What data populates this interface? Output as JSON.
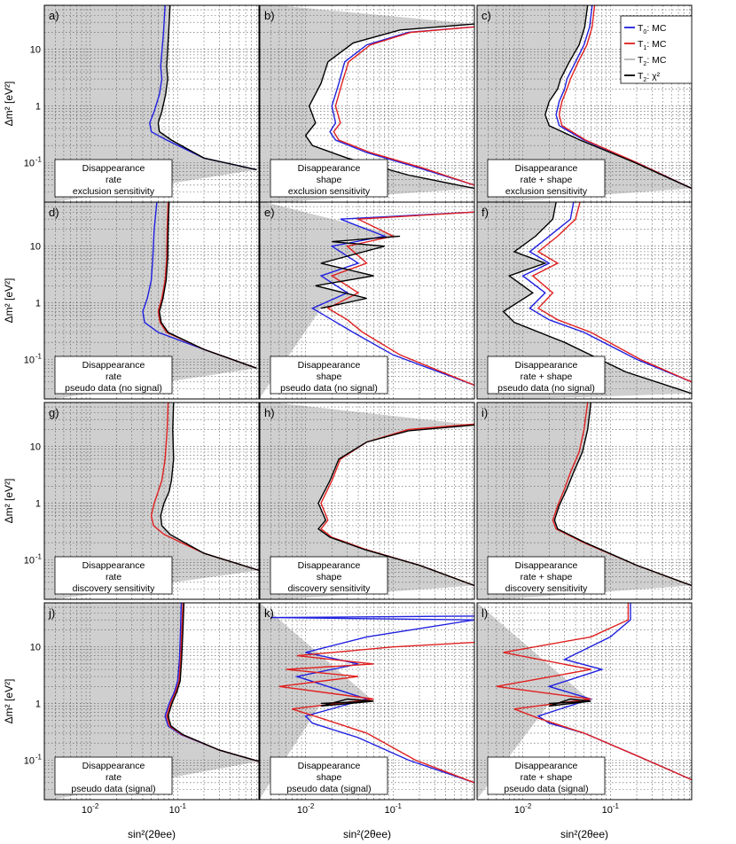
{
  "figure": {
    "y_axis_label": "Δm² [eV²]",
    "x_axis_label": "sin²(2θee)",
    "legend": [
      {
        "label": "T0: MC",
        "sub": "0",
        "text": "T",
        "rest": ": MC",
        "color": "#2020e0"
      },
      {
        "label": "T1: MC",
        "sub": "1",
        "text": "T",
        "rest": ": MC",
        "color": "#e02020"
      },
      {
        "label": "T2: MC",
        "sub": "2",
        "text": "T",
        "rest": ": MC",
        "color": "#b4b4b4"
      },
      {
        "label": "T2: χ²",
        "sub": "2",
        "text": "T",
        "rest": ": χ²",
        "color": "#000000"
      }
    ],
    "x_ticks": [
      {
        "label": "10",
        "exp": "-2",
        "value": 0.01
      },
      {
        "label": "10",
        "exp": "-1",
        "value": 0.1
      }
    ],
    "y_ticks": [
      {
        "label": "10",
        "exp": "-1",
        "value": 0.1
      },
      {
        "label": "1",
        "exp": "",
        "value": 1
      },
      {
        "label": "10",
        "exp": "",
        "value": 10
      }
    ]
  },
  "chart_data": [
    {
      "type": "line",
      "panel": "a)",
      "box": [
        "Disappearance",
        "rate",
        "exclusion sensitivity"
      ],
      "xscale": "log",
      "yscale": "log",
      "series": [
        {
          "name": "T0: MC",
          "x": [
            0.072,
            0.069,
            0.064,
            0.066,
            0.062,
            0.054,
            0.048,
            0.05,
            0.075,
            0.2,
            0.8
          ],
          "y": [
            60,
            20,
            5,
            3,
            1.6,
            0.8,
            0.5,
            0.35,
            0.25,
            0.12,
            0.075
          ]
        },
        {
          "name": "T2: χ²",
          "x": [
            0.082,
            0.079,
            0.075,
            0.077,
            0.073,
            0.066,
            0.06,
            0.062,
            0.085,
            0.2,
            0.8
          ],
          "y": [
            60,
            20,
            5,
            3,
            1.6,
            0.8,
            0.5,
            0.35,
            0.25,
            0.12,
            0.075
          ]
        }
      ]
    },
    {
      "type": "line",
      "panel": "b)",
      "box": [
        "Disappearance",
        "shape",
        "exclusion sensitivity"
      ],
      "xscale": "log",
      "yscale": "log",
      "series": [
        {
          "name": "T0: MC",
          "x": [
            0.85,
            0.15,
            0.05,
            0.028,
            0.024,
            0.02,
            0.022,
            0.019,
            0.022,
            0.05,
            0.2,
            0.85
          ],
          "y": [
            25,
            20,
            12,
            6,
            2.5,
            1,
            0.5,
            0.35,
            0.25,
            0.15,
            0.08,
            0.04
          ]
        },
        {
          "name": "T1: MC",
          "x": [
            0.85,
            0.16,
            0.055,
            0.031,
            0.026,
            0.022,
            0.025,
            0.021,
            0.024,
            0.055,
            0.22,
            0.85
          ],
          "y": [
            25,
            20,
            12,
            6,
            2.5,
            1,
            0.5,
            0.35,
            0.25,
            0.15,
            0.08,
            0.04
          ]
        },
        {
          "name": "T2: χ²",
          "x": [
            0.85,
            0.12,
            0.035,
            0.018,
            0.015,
            0.011,
            0.013,
            0.01,
            0.012,
            0.03,
            0.15,
            0.85
          ],
          "y": [
            28,
            22,
            13,
            6,
            2.5,
            1,
            0.5,
            0.3,
            0.2,
            0.12,
            0.06,
            0.035
          ]
        }
      ]
    },
    {
      "type": "line",
      "panel": "c)",
      "box": [
        "Disappearance",
        "rate + shape",
        "exclusion sensitivity"
      ],
      "xscale": "log",
      "yscale": "log",
      "series": [
        {
          "name": "T0: MC",
          "x": [
            0.062,
            0.058,
            0.05,
            0.04,
            0.032,
            0.03,
            0.026,
            0.024,
            0.026,
            0.05,
            0.2,
            0.85
          ],
          "y": [
            60,
            25,
            12,
            6,
            3,
            2,
            1.2,
            0.7,
            0.45,
            0.25,
            0.1,
            0.035
          ]
        },
        {
          "name": "T1: MC",
          "x": [
            0.066,
            0.062,
            0.054,
            0.043,
            0.035,
            0.032,
            0.028,
            0.026,
            0.028,
            0.052,
            0.2,
            0.85
          ],
          "y": [
            60,
            25,
            12,
            6,
            3,
            2,
            1.2,
            0.7,
            0.45,
            0.25,
            0.1,
            0.035
          ]
        },
        {
          "name": "T2: χ²",
          "x": [
            0.055,
            0.051,
            0.044,
            0.034,
            0.027,
            0.025,
            0.02,
            0.018,
            0.02,
            0.045,
            0.19,
            0.85
          ],
          "y": [
            60,
            25,
            12,
            6,
            3,
            2,
            1.2,
            0.7,
            0.45,
            0.25,
            0.1,
            0.035
          ]
        }
      ]
    },
    {
      "type": "line",
      "panel": "d)",
      "box": [
        "Disappearance",
        "rate",
        "pseudo data (no signal)"
      ],
      "xscale": "log",
      "yscale": "log",
      "series": [
        {
          "name": "T0: MC",
          "x": [
            0.058,
            0.054,
            0.052,
            0.05,
            0.045,
            0.04,
            0.042,
            0.06,
            0.2,
            0.8
          ],
          "y": [
            60,
            20,
            6,
            2.5,
            1.2,
            0.7,
            0.45,
            0.3,
            0.15,
            0.07
          ]
        },
        {
          "name": "T1: MC",
          "x": [
            0.078,
            0.076,
            0.075,
            0.072,
            0.066,
            0.06,
            0.063,
            0.075,
            0.2,
            0.8
          ],
          "y": [
            60,
            20,
            6,
            2.5,
            1.2,
            0.7,
            0.45,
            0.3,
            0.15,
            0.07
          ]
        },
        {
          "name": "T2: χ²",
          "x": [
            0.08,
            0.078,
            0.077,
            0.074,
            0.068,
            0.062,
            0.065,
            0.078,
            0.2,
            0.8
          ],
          "y": [
            60,
            20,
            6,
            2.5,
            1.2,
            0.7,
            0.45,
            0.3,
            0.15,
            0.07
          ]
        }
      ]
    },
    {
      "type": "line",
      "panel": "e)",
      "box": [
        "Disappearance",
        "shape",
        "pseudo data (no signal)"
      ],
      "xscale": "log",
      "yscale": "log",
      "series": [
        {
          "name": "T0: MC",
          "x": [
            0.85,
            0.025,
            0.08,
            0.02,
            0.04,
            0.015,
            0.03,
            0.012,
            0.02,
            0.035,
            0.1,
            0.85
          ],
          "y": [
            40,
            30,
            15,
            10,
            5,
            3,
            1.5,
            0.8,
            0.5,
            0.3,
            0.12,
            0.035
          ]
        },
        {
          "name": "T1: MC",
          "x": [
            0.85,
            0.04,
            0.1,
            0.03,
            0.05,
            0.02,
            0.04,
            0.018,
            0.03,
            0.045,
            0.12,
            0.85
          ],
          "y": [
            40,
            30,
            15,
            10,
            5,
            3,
            1.5,
            0.8,
            0.5,
            0.3,
            0.12,
            0.035
          ]
        },
        {
          "name": "T2: χ²",
          "x": [
            0.12,
            0.02,
            0.08,
            0.015,
            0.06,
            0.013,
            0.05,
            0.015
          ],
          "y": [
            15,
            12,
            10,
            5,
            3,
            2,
            1.2,
            0.8
          ]
        }
      ]
    },
    {
      "type": "line",
      "panel": "f)",
      "box": [
        "Disappearance",
        "rate + shape",
        "pseudo data (no signal)"
      ],
      "xscale": "log",
      "yscale": "log",
      "series": [
        {
          "name": "T0: MC",
          "x": [
            0.038,
            0.035,
            0.02,
            0.012,
            0.02,
            0.01,
            0.018,
            0.012,
            0.02,
            0.05,
            0.2,
            0.85
          ],
          "y": [
            60,
            30,
            15,
            8,
            5,
            3,
            1.5,
            0.8,
            0.5,
            0.3,
            0.1,
            0.04
          ]
        },
        {
          "name": "T1: MC",
          "x": [
            0.045,
            0.04,
            0.025,
            0.015,
            0.025,
            0.013,
            0.022,
            0.015,
            0.025,
            0.06,
            0.22,
            0.85
          ],
          "y": [
            60,
            30,
            15,
            8,
            5,
            3,
            1.5,
            0.8,
            0.5,
            0.3,
            0.1,
            0.04
          ]
        },
        {
          "name": "T2: χ²",
          "x": [
            0.024,
            0.022,
            0.014,
            0.008,
            0.018,
            0.007,
            0.013,
            0.006,
            0.008,
            0.03,
            0.15,
            0.85
          ],
          "y": [
            60,
            30,
            15,
            8,
            5,
            3,
            1.5,
            0.7,
            0.45,
            0.2,
            0.06,
            0.025
          ]
        }
      ]
    },
    {
      "type": "line",
      "panel": "g)",
      "box": [
        "Disappearance",
        "rate",
        "discovery sensitivity"
      ],
      "xscale": "log",
      "yscale": "log",
      "series": [
        {
          "name": "T1: MC",
          "x": [
            0.078,
            0.076,
            0.072,
            0.066,
            0.06,
            0.054,
            0.05,
            0.053,
            0.07,
            0.2,
            0.85
          ],
          "y": [
            60,
            20,
            6,
            2.5,
            1.6,
            1,
            0.6,
            0.4,
            0.28,
            0.13,
            0.065
          ]
        },
        {
          "name": "T2: χ²",
          "x": [
            0.09,
            0.088,
            0.09,
            0.085,
            0.08,
            0.07,
            0.064,
            0.066,
            0.082,
            0.2,
            0.85
          ],
          "y": [
            60,
            20,
            6,
            2.5,
            1.6,
            1,
            0.6,
            0.4,
            0.28,
            0.13,
            0.065
          ]
        }
      ]
    },
    {
      "type": "line",
      "panel": "h)",
      "box": [
        "Disappearance",
        "shape",
        "discovery sensitivity"
      ],
      "xscale": "log",
      "yscale": "log",
      "series": [
        {
          "name": "T1: MC",
          "x": [
            0.85,
            0.15,
            0.05,
            0.025,
            0.02,
            0.015,
            0.018,
            0.015,
            0.02,
            0.05,
            0.2,
            0.85
          ],
          "y": [
            25,
            20,
            12,
            6,
            2.5,
            1,
            0.5,
            0.35,
            0.25,
            0.15,
            0.08,
            0.035
          ]
        },
        {
          "name": "T2: χ²",
          "x": [
            0.85,
            0.15,
            0.05,
            0.024,
            0.019,
            0.014,
            0.017,
            0.014,
            0.019,
            0.048,
            0.2,
            0.85
          ],
          "y": [
            24,
            19,
            12,
            6,
            2.5,
            1,
            0.5,
            0.35,
            0.25,
            0.15,
            0.08,
            0.035
          ]
        }
      ]
    },
    {
      "type": "line",
      "panel": "i)",
      "box": [
        "Disappearance",
        "rate + shape",
        "discovery sensitivity"
      ],
      "xscale": "log",
      "yscale": "log",
      "series": [
        {
          "name": "T1: MC",
          "x": [
            0.055,
            0.05,
            0.044,
            0.035,
            0.03,
            0.025,
            0.022,
            0.024,
            0.05,
            0.2,
            0.85
          ],
          "y": [
            60,
            20,
            8,
            3.5,
            1.8,
            0.9,
            0.5,
            0.35,
            0.2,
            0.08,
            0.035
          ]
        },
        {
          "name": "T2: χ²",
          "x": [
            0.06,
            0.055,
            0.048,
            0.038,
            0.032,
            0.026,
            0.023,
            0.025,
            0.052,
            0.2,
            0.85
          ],
          "y": [
            60,
            20,
            8,
            3.5,
            1.8,
            0.9,
            0.5,
            0.35,
            0.2,
            0.08,
            0.035
          ]
        }
      ]
    },
    {
      "type": "line",
      "panel": "j)",
      "box": [
        "Disappearance",
        "rate",
        "pseudo data (signal)"
      ],
      "xscale": "log",
      "yscale": "log",
      "series": [
        {
          "name": "T0: MC",
          "x": [
            0.11,
            0.108,
            0.105,
            0.1,
            0.092,
            0.08,
            0.072,
            0.078,
            0.11,
            0.3,
            0.85
          ],
          "y": [
            60,
            20,
            6,
            2.5,
            1.6,
            1,
            0.6,
            0.4,
            0.28,
            0.15,
            0.095
          ]
        },
        {
          "name": "T1: MC",
          "x": [
            0.115,
            0.112,
            0.108,
            0.104,
            0.095,
            0.083,
            0.075,
            0.081,
            0.113,
            0.3,
            0.85
          ],
          "y": [
            60,
            20,
            6,
            2.5,
            1.6,
            1,
            0.6,
            0.4,
            0.28,
            0.15,
            0.095
          ]
        },
        {
          "name": "T2: χ²",
          "x": [
            0.118,
            0.115,
            0.111,
            0.107,
            0.098,
            0.086,
            0.078,
            0.084,
            0.116,
            0.3,
            0.85
          ],
          "y": [
            60,
            20,
            6,
            2.5,
            1.6,
            1,
            0.6,
            0.4,
            0.28,
            0.15,
            0.095
          ]
        }
      ]
    },
    {
      "type": "line",
      "panel": "k)",
      "box": [
        "Disappearance",
        "shape",
        "pseudo data (signal)"
      ],
      "xscale": "log",
      "yscale": "log",
      "series": [
        {
          "name": "T0: MC",
          "x": [
            0.85,
            0.004,
            0.85,
            0.05,
            0.01,
            0.04,
            0.008,
            0.05,
            0.01,
            0.012,
            0.04,
            0.15,
            0.85
          ],
          "y": [
            35,
            33,
            30,
            15,
            8,
            5,
            3,
            1.2,
            0.6,
            0.45,
            0.25,
            0.1,
            0.04
          ]
        },
        {
          "name": "T1: MC",
          "x": [
            0.85,
            0.1,
            0.008,
            0.06,
            0.006,
            0.04,
            0.005,
            0.06,
            0.007,
            0.015,
            0.05,
            0.18,
            0.85
          ],
          "y": [
            12,
            10,
            7,
            5,
            4,
            3,
            2,
            1.2,
            0.8,
            0.55,
            0.3,
            0.1,
            0.04
          ]
        },
        {
          "name": "T2: χ²",
          "x": [
            0.06,
            0.015,
            0.03,
            0.06,
            0.015
          ],
          "y": [
            1.1,
            0.9,
            1.2,
            1.1,
            1.0
          ]
        }
      ]
    },
    {
      "type": "line",
      "panel": "l)",
      "box": [
        "Disappearance",
        "rate + shape",
        "pseudo data (signal)"
      ],
      "xscale": "log",
      "yscale": "log",
      "series": [
        {
          "name": "T0: MC",
          "x": [
            0.17,
            0.17,
            0.1,
            0.03,
            0.08,
            0.02,
            0.06,
            0.015,
            0.02,
            0.05,
            0.2,
            0.85
          ],
          "y": [
            60,
            30,
            15,
            6,
            4,
            2,
            1.2,
            0.6,
            0.45,
            0.3,
            0.12,
            0.045
          ]
        },
        {
          "name": "T1: MC",
          "x": [
            0.16,
            0.16,
            0.06,
            0.006,
            0.06,
            0.005,
            0.06,
            0.008,
            0.015,
            0.05,
            0.2,
            0.85
          ],
          "y": [
            60,
            30,
            15,
            8,
            4,
            2,
            1.2,
            0.8,
            0.55,
            0.3,
            0.12,
            0.045
          ]
        },
        {
          "name": "T2: χ²",
          "x": [
            0.06,
            0.02,
            0.035,
            0.06,
            0.02
          ],
          "y": [
            1.1,
            0.9,
            1.2,
            1.1,
            1.0
          ]
        }
      ]
    }
  ]
}
